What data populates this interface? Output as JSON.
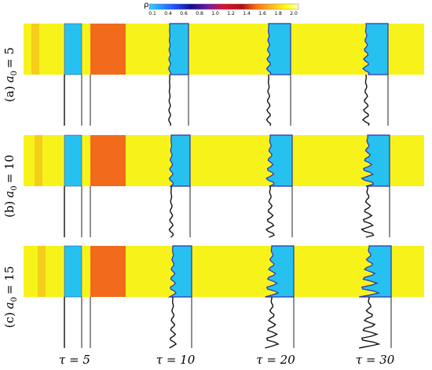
{
  "colorbar": {
    "label": "ρ",
    "ticks": [
      "0.1",
      "0.4",
      "0.6",
      "0.8",
      "1.0",
      "1.2",
      "1.4",
      "1.6",
      "1.8",
      "2.0"
    ]
  },
  "rows": [
    {
      "tag": "(a)",
      "param": "a",
      "sub": "0",
      "value": "= 5"
    },
    {
      "tag": "(b)",
      "param": "a",
      "sub": "0",
      "value": "= 10"
    },
    {
      "tag": "(c)",
      "param": "a",
      "sub": "0",
      "value": "= 15"
    }
  ],
  "columns": [
    "τ = 5",
    "τ = 10",
    "τ = 20",
    "τ = 30"
  ]
}
